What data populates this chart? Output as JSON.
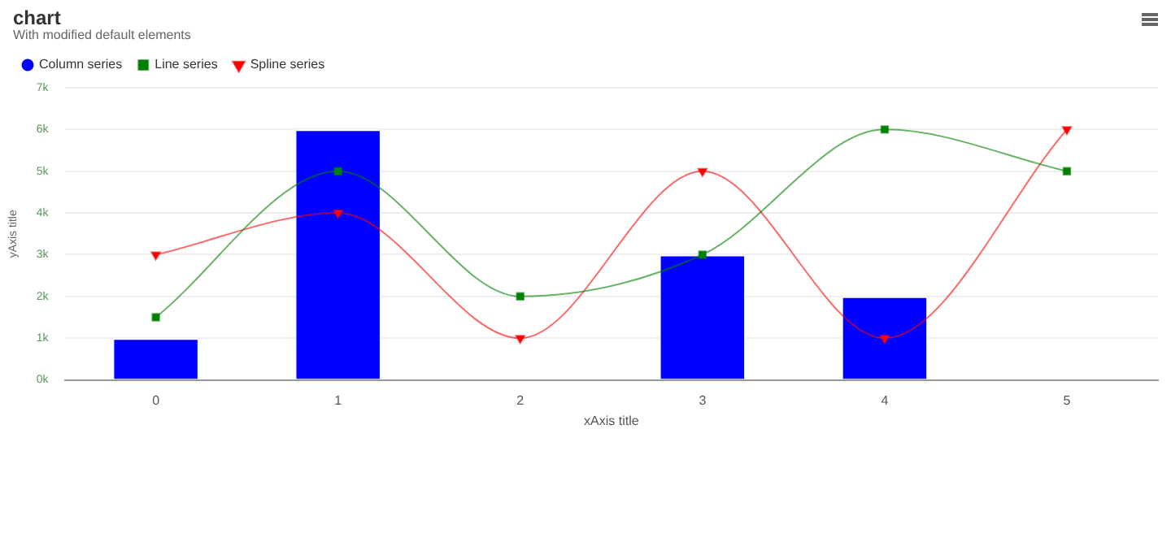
{
  "chart_data": {
    "type": "bar",
    "title": "chart",
    "subtitle": "With modified default elements",
    "xlabel": "xAxis title",
    "ylabel": "yAxis title",
    "categories": [
      "0",
      "1",
      "2",
      "3",
      "4",
      "5"
    ],
    "series": [
      {
        "name": "Column series",
        "color": "#0000ff",
        "values": [
          1000,
          6000,
          null,
          3000,
          2000,
          null
        ]
      },
      {
        "name": "Line series",
        "type": "line",
        "color": "#008000",
        "marker": "square",
        "values": [
          1500,
          5000,
          2000,
          3000,
          6000,
          5000
        ]
      },
      {
        "name": "Spline series",
        "type": "line",
        "color": "#ff0000",
        "marker": "triangle",
        "values": [
          3000,
          4000,
          1000,
          5000,
          1000,
          6000
        ]
      }
    ],
    "ylim": [
      0,
      7000
    ],
    "yticks": [
      {
        "value": 0,
        "label": "0k"
      },
      {
        "value": 1000,
        "label": "1k"
      },
      {
        "value": 2000,
        "label": "2k"
      },
      {
        "value": 3000,
        "label": "3k"
      },
      {
        "value": 4000,
        "label": "4k"
      },
      {
        "value": 5000,
        "label": "5k"
      },
      {
        "value": 6000,
        "label": "6k"
      },
      {
        "value": 7000,
        "label": "7k"
      }
    ],
    "grid": "y",
    "legend": "top left"
  }
}
